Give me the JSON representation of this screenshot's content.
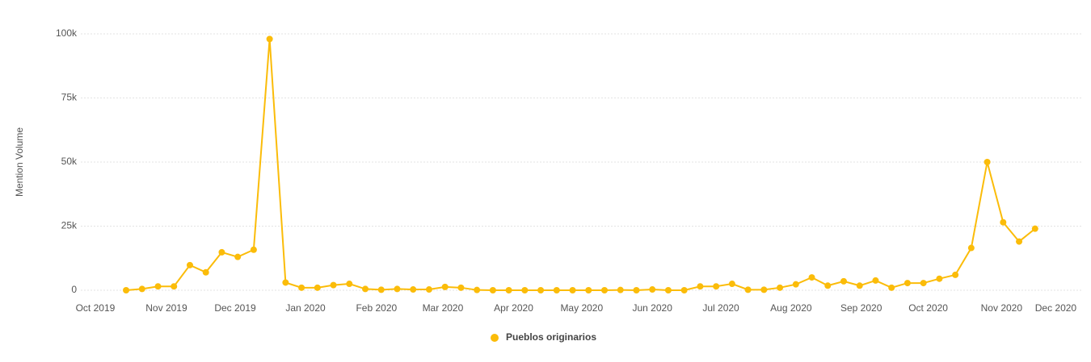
{
  "chart_data": {
    "type": "line",
    "y_label": "Mention Volume",
    "x": [
      0,
      1,
      2,
      3,
      4,
      5,
      6,
      7,
      8,
      9,
      10,
      11,
      12,
      13,
      14,
      15,
      16,
      17,
      18,
      19,
      20,
      21,
      22,
      23,
      24,
      25,
      26,
      27,
      28,
      29,
      30,
      31,
      32,
      33,
      34,
      35,
      36,
      37,
      38,
      39,
      40,
      41,
      42,
      43,
      44,
      45,
      46,
      47,
      48,
      49,
      50,
      51,
      52,
      53,
      54,
      55,
      56,
      57
    ],
    "series": [
      {
        "name": "Pueblos originarios",
        "color": "#fbbc09",
        "values": [
          0,
          500,
          1500,
          1500,
          9800,
          7000,
          14800,
          13000,
          15800,
          98000,
          3000,
          1000,
          1000,
          2000,
          2500,
          500,
          200,
          500,
          300,
          300,
          1300,
          1000,
          100,
          0,
          0,
          0,
          0,
          0,
          0,
          0,
          0,
          100,
          0,
          300,
          0,
          0,
          1500,
          1500,
          2500,
          200,
          200,
          1000,
          2300,
          5000,
          1800,
          3500,
          1800,
          3800,
          1000,
          2800,
          2800,
          4500,
          6000,
          16500,
          50000,
          26500,
          19000,
          24000
        ]
      }
    ],
    "xlim": [
      -2.84,
      59.9
    ],
    "xticks": [
      {
        "value": -1.93,
        "label": "Oct 2019"
      },
      {
        "value": 2.53,
        "label": "Nov 2019"
      },
      {
        "value": 6.84,
        "label": "Dec 2019"
      },
      {
        "value": 11.25,
        "label": "Jan 2020"
      },
      {
        "value": 15.7,
        "label": "Feb 2020"
      },
      {
        "value": 19.86,
        "label": "Mar 2020"
      },
      {
        "value": 24.3,
        "label": "Apr 2020"
      },
      {
        "value": 28.57,
        "label": "May 2020"
      },
      {
        "value": 33.0,
        "label": "Jun 2020"
      },
      {
        "value": 37.3,
        "label": "Jul 2020"
      },
      {
        "value": 41.7,
        "label": "Aug 2020"
      },
      {
        "value": 46.1,
        "label": "Sep 2020"
      },
      {
        "value": 50.3,
        "label": "Oct 2020"
      },
      {
        "value": 54.9,
        "label": "Nov 2020"
      },
      {
        "value": 58.3,
        "label": "Dec 2020"
      }
    ],
    "ylim": [
      0,
      100000
    ],
    "yticks": [
      0,
      {
        "value": 25000,
        "label": "25k"
      },
      {
        "value": 50000,
        "label": "50k"
      },
      {
        "value": 75000,
        "label": "75k"
      },
      {
        "value": 100000,
        "label": "100k"
      }
    ],
    "grid": true,
    "legend": "bottom"
  }
}
